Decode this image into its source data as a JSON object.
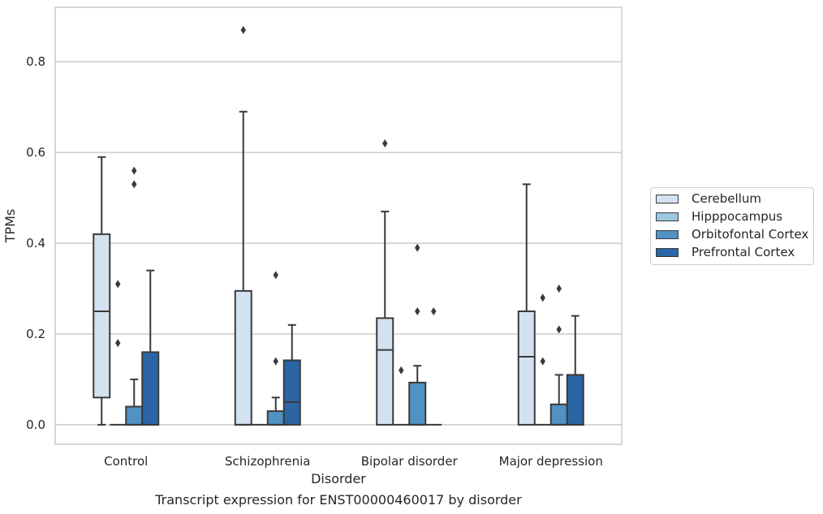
{
  "chart_data": {
    "type": "box",
    "title": "Transcript expression for ENST00000460017 by disorder",
    "xlabel": "Disorder",
    "ylabel": "TPMs",
    "ylim": [
      -0.043,
      0.92
    ],
    "yticks": [
      0.0,
      0.2,
      0.4,
      0.6,
      0.8
    ],
    "ytick_labels": [
      "0.0",
      "0.2",
      "0.4",
      "0.6",
      "0.8"
    ],
    "grid": true,
    "legend_position": "right",
    "categories": [
      "Control",
      "Schizophrenia",
      "Bipolar disorder",
      "Major depression"
    ],
    "series": [
      {
        "name": "Cerebellum",
        "color": "#d3e2f1",
        "boxes": [
          {
            "whisker_low": 0.0,
            "q1": 0.06,
            "median": 0.25,
            "q3": 0.42,
            "whisker_high": 0.59,
            "outliers": []
          },
          {
            "whisker_low": 0.0,
            "q1": 0.0,
            "median": 0.0,
            "q3": 0.295,
            "whisker_high": 0.69,
            "outliers": [
              0.87
            ]
          },
          {
            "whisker_low": 0.0,
            "q1": 0.0,
            "median": 0.165,
            "q3": 0.235,
            "whisker_high": 0.47,
            "outliers": [
              0.62
            ]
          },
          {
            "whisker_low": 0.0,
            "q1": 0.0,
            "median": 0.15,
            "q3": 0.25,
            "whisker_high": 0.53,
            "outliers": []
          }
        ]
      },
      {
        "name": "Hipppocampus",
        "color": "#9ac8e0",
        "boxes": [
          {
            "whisker_low": 0.0,
            "q1": 0.0,
            "median": 0.0,
            "q3": 0.0,
            "whisker_high": 0.0,
            "outliers": [
              0.18,
              0.31
            ]
          },
          {
            "whisker_low": 0.0,
            "q1": 0.0,
            "median": 0.0,
            "q3": 0.0,
            "whisker_high": 0.0,
            "outliers": []
          },
          {
            "whisker_low": 0.0,
            "q1": 0.0,
            "median": 0.0,
            "q3": 0.0,
            "whisker_high": 0.0,
            "outliers": [
              0.12
            ]
          },
          {
            "whisker_low": 0.0,
            "q1": 0.0,
            "median": 0.0,
            "q3": 0.0,
            "whisker_high": 0.0,
            "outliers": [
              0.14,
              0.28
            ]
          }
        ]
      },
      {
        "name": "Orbitofontal Cortex",
        "color": "#5092c3",
        "boxes": [
          {
            "whisker_low": 0.0,
            "q1": 0.0,
            "median": 0.0,
            "q3": 0.04,
            "whisker_high": 0.1,
            "outliers": [
              0.53,
              0.56
            ]
          },
          {
            "whisker_low": 0.0,
            "q1": 0.0,
            "median": 0.0,
            "q3": 0.03,
            "whisker_high": 0.06,
            "outliers": [
              0.14,
              0.33
            ]
          },
          {
            "whisker_low": 0.0,
            "q1": 0.0,
            "median": 0.0,
            "q3": 0.093,
            "whisker_high": 0.13,
            "outliers": [
              0.25,
              0.39
            ]
          },
          {
            "whisker_low": 0.0,
            "q1": 0.0,
            "median": 0.0,
            "q3": 0.045,
            "whisker_high": 0.11,
            "outliers": [
              0.21,
              0.3
            ]
          }
        ]
      },
      {
        "name": "Prefrontal Cortex",
        "color": "#2a66a6",
        "boxes": [
          {
            "whisker_low": 0.0,
            "q1": 0.0,
            "median": 0.0,
            "q3": 0.16,
            "whisker_high": 0.34,
            "outliers": []
          },
          {
            "whisker_low": 0.0,
            "q1": 0.0,
            "median": 0.05,
            "q3": 0.142,
            "whisker_high": 0.22,
            "outliers": []
          },
          {
            "whisker_low": 0.0,
            "q1": 0.0,
            "median": 0.0,
            "q3": 0.0,
            "whisker_high": 0.0,
            "outliers": [
              0.25
            ]
          },
          {
            "whisker_low": 0.0,
            "q1": 0.0,
            "median": 0.0,
            "q3": 0.11,
            "whisker_high": 0.24,
            "outliers": []
          }
        ]
      }
    ]
  }
}
